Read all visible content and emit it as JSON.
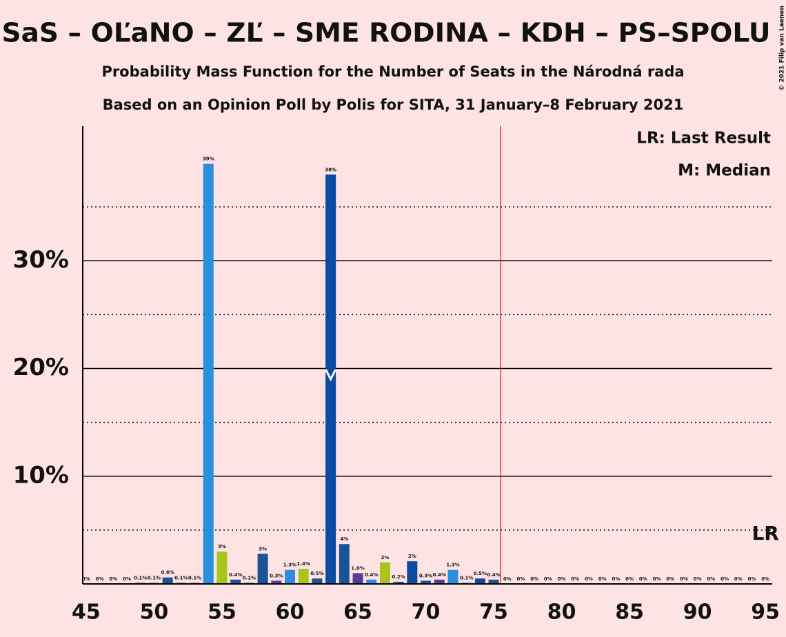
{
  "chart_data": {
    "type": "bar",
    "title": "SaS – OĽaNO – ZĽ – SME RODINA – KDH – PS–SPOLU",
    "subtitle": "Probability Mass Function for the Number of Seats in the Národná rada",
    "subtitle2": "Based on an Opinion Poll by Polis for SITA, 31 January–8 February 2021",
    "legend": [
      "LR: Last Result",
      "M: Median"
    ],
    "copyright": "© 2021 Filip van Laenen",
    "x": [
      45,
      46,
      47,
      48,
      49,
      50,
      51,
      52,
      53,
      54,
      55,
      56,
      57,
      58,
      59,
      60,
      61,
      62,
      63,
      64,
      65,
      66,
      67,
      68,
      69,
      70,
      71,
      72,
      73,
      74,
      75,
      76,
      77,
      78,
      79,
      80,
      81,
      82,
      83,
      84,
      85,
      86,
      87,
      88,
      89,
      90,
      91,
      92,
      93,
      94,
      95
    ],
    "values": [
      0,
      0,
      0,
      0,
      0.1,
      0.1,
      0.6,
      0.1,
      0.1,
      39,
      3,
      0.4,
      0.1,
      2.8,
      0.3,
      1.3,
      1.4,
      0.5,
      38,
      3.7,
      1.0,
      0.4,
      2,
      0.2,
      2.1,
      0.3,
      0.4,
      1.3,
      0.1,
      0.5,
      0.4,
      0,
      0,
      0,
      0,
      0,
      0,
      0,
      0,
      0,
      0,
      0,
      0,
      0,
      0,
      0,
      0,
      0,
      0,
      0,
      0
    ],
    "value_labels": [
      "0%",
      "0%",
      "0%",
      "0%",
      "0.1%",
      "0.1%",
      "0.6%",
      "0.1%",
      "0.1%",
      "39%",
      "3%",
      "0.4%",
      "0.1%",
      "3%",
      "0.3%",
      "1.3%",
      "1.4%",
      "0.5%",
      "38%",
      "4%",
      "1.0%",
      "0.4%",
      "2%",
      "0.2%",
      "2%",
      "0.3%",
      "0.4%",
      "1.3%",
      "0.1%",
      "0.5%",
      "0.4%",
      "0%",
      "0%",
      "0%",
      "0%",
      "0%",
      "0%",
      "0%",
      "0%",
      "0%",
      "0%",
      "0%",
      "0%",
      "0%",
      "0%",
      "0%",
      "0%",
      "0%",
      "0%",
      "0%",
      "0%"
    ],
    "colors": [
      "#1b5394",
      "#1b5394",
      "#1b5394",
      "#1b5394",
      "#1b5394",
      "#1b5394",
      "#1b5394",
      "#1b5394",
      "#1b5394",
      "#2a8fdc",
      "#a9c41b",
      "#1b5394",
      "#1b5394",
      "#1b5394",
      "#5b3a98",
      "#2a8fdc",
      "#a9c41b",
      "#1b5394",
      "#0d4aa0",
      "#1b5394",
      "#5b3a98",
      "#2a8fdc",
      "#a9c41b",
      "#1b5394",
      "#0d4aa0",
      "#1b5394",
      "#5b3a98",
      "#2a8fdc",
      "#1b5394",
      "#0d4aa0",
      "#1b5394",
      "#1b5394",
      "#1b5394",
      "#1b5394",
      "#1b5394",
      "#1b5394",
      "#1b5394",
      "#1b5394",
      "#1b5394",
      "#1b5394",
      "#1b5394",
      "#1b5394",
      "#1b5394",
      "#1b5394",
      "#1b5394",
      "#1b5394",
      "#1b5394",
      "#1b5394",
      "#1b5394",
      "#1b5394",
      "#1b5394"
    ],
    "median": 63,
    "majority_line": 75.5,
    "last_result": 95,
    "last_result_label": "LR",
    "xlim": [
      44.75,
      95.5
    ],
    "ylim": [
      0,
      42.5
    ],
    "xticks": [
      45,
      50,
      55,
      60,
      65,
      70,
      75,
      80,
      85,
      90,
      95
    ],
    "yticks": [
      {
        "value": 10,
        "label": "10%"
      },
      {
        "value": 20,
        "label": "20%"
      },
      {
        "value": 30,
        "label": "30%"
      }
    ],
    "minor_yticks": [
      5,
      15,
      25,
      35
    ]
  }
}
